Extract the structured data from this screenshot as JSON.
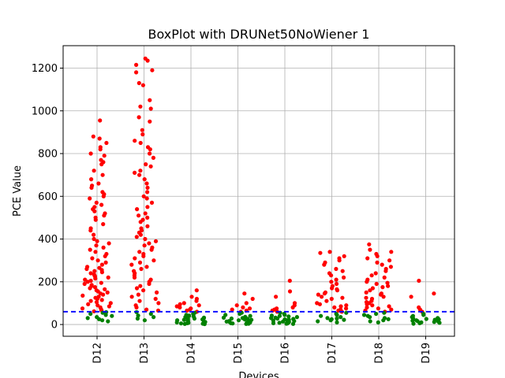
{
  "chart_data": {
    "type": "scatter",
    "title": "BoxPlot with DRUNet50NoWiener 1",
    "xlabel": "Devices",
    "ylabel": "PCE Value",
    "categories": [
      "D12",
      "D13",
      "D14",
      "D15",
      "D16",
      "D17",
      "D18",
      "D19"
    ],
    "ylim": [
      -55,
      1305
    ],
    "yticks": [
      0,
      200,
      400,
      600,
      800,
      1000,
      1200
    ],
    "grid": true,
    "threshold": {
      "value": 60,
      "color": "#0000ff",
      "style": "dashed"
    },
    "colors": {
      "above_threshold": "#ff0000",
      "below_threshold": "#008000"
    },
    "series": [
      {
        "category": "D12",
        "values": [
          955,
          880,
          870,
          850,
          830,
          820,
          800,
          790,
          770,
          760,
          750,
          720,
          700,
          680,
          660,
          650,
          640,
          620,
          610,
          600,
          590,
          570,
          560,
          550,
          540,
          530,
          520,
          510,
          500,
          490,
          470,
          450,
          440,
          420,
          400,
          390,
          380,
          370,
          360,
          350,
          340,
          330,
          320,
          310,
          300,
          290,
          280,
          270,
          265,
          260,
          255,
          250,
          245,
          240,
          235,
          230,
          225,
          220,
          215,
          210,
          205,
          200,
          195,
          190,
          185,
          180,
          175,
          170,
          165,
          160,
          155,
          150,
          145,
          140,
          135,
          130,
          125,
          120,
          115,
          110,
          105,
          100,
          95,
          90,
          85,
          80,
          75,
          70,
          66,
          62,
          58,
          55,
          50,
          45,
          40,
          35,
          30,
          25,
          20,
          15
        ]
      },
      {
        "category": "D13",
        "values": [
          1245,
          1235,
          1215,
          1190,
          1180,
          1130,
          1120,
          1050,
          1020,
          1010,
          970,
          950,
          910,
          890,
          860,
          850,
          830,
          820,
          800,
          780,
          750,
          740,
          720,
          710,
          700,
          680,
          660,
          640,
          620,
          600,
          590,
          570,
          550,
          540,
          520,
          510,
          500,
          490,
          480,
          460,
          450,
          440,
          430,
          420,
          410,
          400,
          390,
          380,
          370,
          360,
          350,
          340,
          330,
          320,
          310,
          300,
          290,
          280,
          270,
          260,
          250,
          240,
          230,
          220,
          210,
          200,
          190,
          180,
          170,
          160,
          150,
          140,
          130,
          120,
          110,
          100,
          90,
          80,
          70,
          65,
          58,
          50,
          42,
          35,
          28,
          20
        ]
      },
      {
        "category": "D14",
        "values": [
          160,
          130,
          120,
          110,
          100,
          95,
          90,
          85,
          80,
          75,
          70,
          65,
          60,
          55,
          50,
          45,
          42,
          40,
          38,
          35,
          32,
          30,
          28,
          26,
          24,
          22,
          20,
          18,
          16,
          14,
          12,
          10,
          8,
          6,
          5,
          4,
          3,
          2
        ]
      },
      {
        "category": "D15",
        "values": [
          145,
          120,
          100,
          90,
          80,
          75,
          70,
          65,
          60,
          55,
          50,
          45,
          40,
          36,
          32,
          30,
          28,
          26,
          24,
          22,
          20,
          18,
          16,
          14,
          12,
          10,
          8,
          6,
          5,
          4,
          3
        ]
      },
      {
        "category": "D16",
        "values": [
          205,
          155,
          130,
          100,
          90,
          80,
          75,
          70,
          65,
          60,
          55,
          50,
          45,
          42,
          40,
          38,
          35,
          32,
          30,
          28,
          26,
          24,
          22,
          20,
          18,
          16,
          14,
          12,
          10,
          8,
          6,
          5,
          4,
          3
        ]
      },
      {
        "category": "D17",
        "values": [
          340,
          335,
          320,
          310,
          300,
          290,
          280,
          260,
          250,
          240,
          230,
          220,
          210,
          200,
          190,
          180,
          170,
          165,
          160,
          150,
          145,
          140,
          130,
          125,
          120,
          110,
          100,
          95,
          90,
          85,
          80,
          75,
          70,
          65,
          60,
          55,
          50,
          45,
          40,
          35,
          30,
          28,
          25,
          22,
          20,
          15,
          10
        ]
      },
      {
        "category": "D18",
        "values": [
          375,
          350,
          340,
          330,
          320,
          310,
          300,
          290,
          280,
          270,
          260,
          250,
          240,
          230,
          220,
          210,
          200,
          195,
          190,
          180,
          175,
          170,
          160,
          150,
          145,
          140,
          130,
          125,
          120,
          110,
          105,
          100,
          95,
          90,
          85,
          80,
          75,
          70,
          65,
          60,
          55,
          50,
          45,
          40,
          35,
          30,
          25,
          20,
          15,
          10
        ]
      },
      {
        "category": "D19",
        "values": [
          205,
          145,
          130,
          80,
          70,
          60,
          50,
          45,
          40,
          35,
          30,
          28,
          26,
          24,
          22,
          20,
          18,
          16,
          14,
          12,
          10,
          8,
          6,
          4
        ]
      }
    ]
  }
}
